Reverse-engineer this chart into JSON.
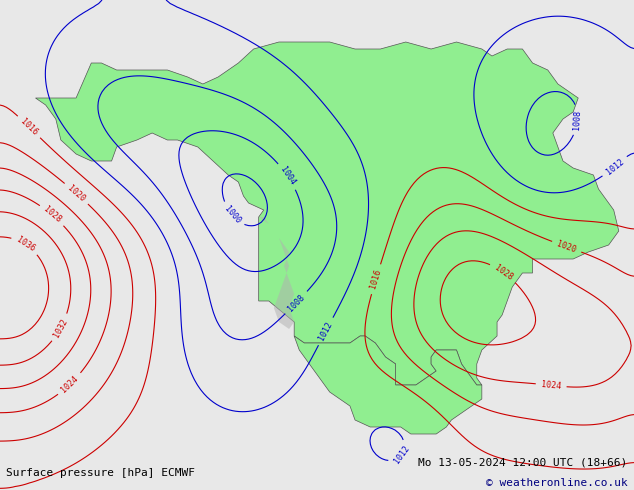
{
  "title_left": "Surface pressure [hPa] ECMWF",
  "title_right": "Mo 13-05-2024 12:00 UTC (18+66)",
  "copyright": "© weatheronline.co.uk",
  "background_color": "#e8e8e8",
  "land_color": "#90EE90",
  "ocean_color": "#d0d8e8",
  "isobar_color_low": "#0000cc",
  "isobar_color_high": "#cc0000",
  "isobar_color_special": "#000000",
  "font_size_labels": 7,
  "font_size_footer": 8,
  "dpi": 100,
  "figsize": [
    6.34,
    4.9
  ]
}
